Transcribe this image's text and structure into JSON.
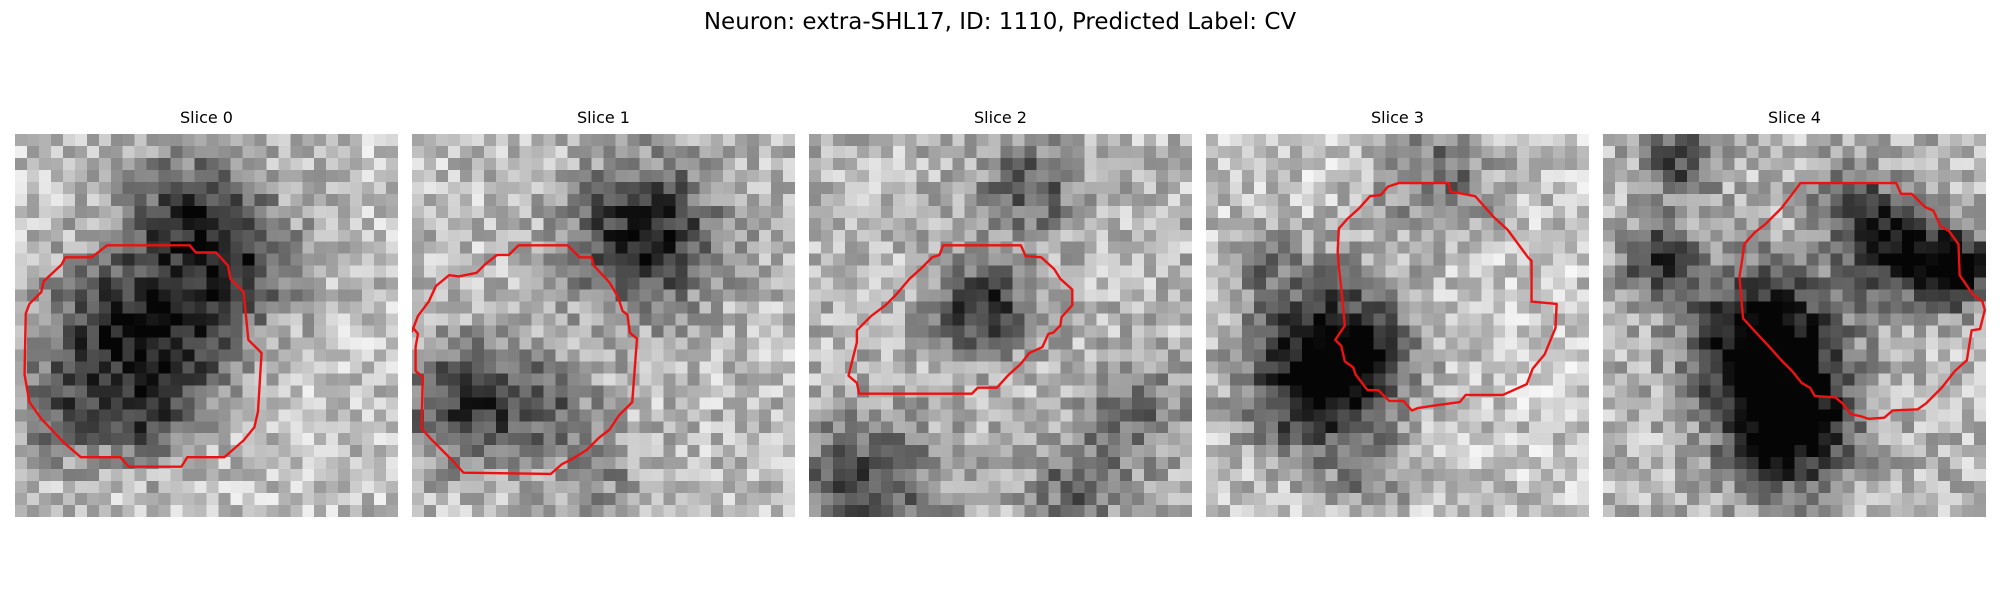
{
  "figure": {
    "title": "Neuron: extra-SHL17, ID: 1110, Predicted Label: CV"
  },
  "colors": {
    "contour": "#ee1111",
    "background": "#ffffff"
  },
  "slices": [
    {
      "title": "Slice 0"
    },
    {
      "title": "Slice 1"
    },
    {
      "title": "Slice 2"
    },
    {
      "title": "Slice 3"
    },
    {
      "title": "Slice 4"
    }
  ]
}
